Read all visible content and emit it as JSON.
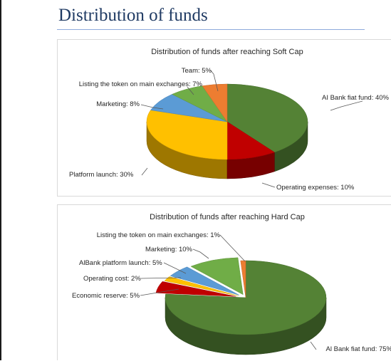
{
  "page": {
    "title": "Distribution of funds"
  },
  "colors": {
    "green": "#548235",
    "red": "#c00000",
    "yellow": "#ffc000",
    "blue": "#5b9bd5",
    "light_green": "#70ad47",
    "orange": "#ed7d31",
    "title_blue": "#1f3a63"
  },
  "chart_data": [
    {
      "type": "pie",
      "title": "Distribution of funds after reaching Soft Cap",
      "slices": [
        {
          "label": "AI Bank fiat fund: 40%",
          "value": 40,
          "color": "#548235"
        },
        {
          "label": "Operating expenses: 10%",
          "value": 10,
          "color": "#c00000"
        },
        {
          "label": "Platform launch: 30%",
          "value": 30,
          "color": "#ffc000"
        },
        {
          "label": "Marketing: 8%",
          "value": 8,
          "color": "#5b9bd5"
        },
        {
          "label": "Listing the token on main exchanges: 7%",
          "value": 7,
          "color": "#70ad47"
        },
        {
          "label": "Team: 5%",
          "value": 5,
          "color": "#ed7d31"
        }
      ]
    },
    {
      "type": "pie",
      "title": "Distribution of funds after reaching Hard Cap",
      "slices": [
        {
          "label": "Al Bank fiat fund: 75%",
          "value": 75,
          "color": "#548235"
        },
        {
          "label": "Economic reserve: 5%",
          "value": 5,
          "color": "#c00000"
        },
        {
          "label": "Operating cost: 2%",
          "value": 2,
          "color": "#ffc000"
        },
        {
          "label": "AlBank platform launch: 5%",
          "value": 5,
          "color": "#5b9bd5"
        },
        {
          "label": "Marketing: 10%",
          "value": 10,
          "color": "#70ad47"
        },
        {
          "label": "Listing the token on main exchanges: 1%",
          "value": 1,
          "color": "#ed7d31"
        }
      ]
    }
  ]
}
